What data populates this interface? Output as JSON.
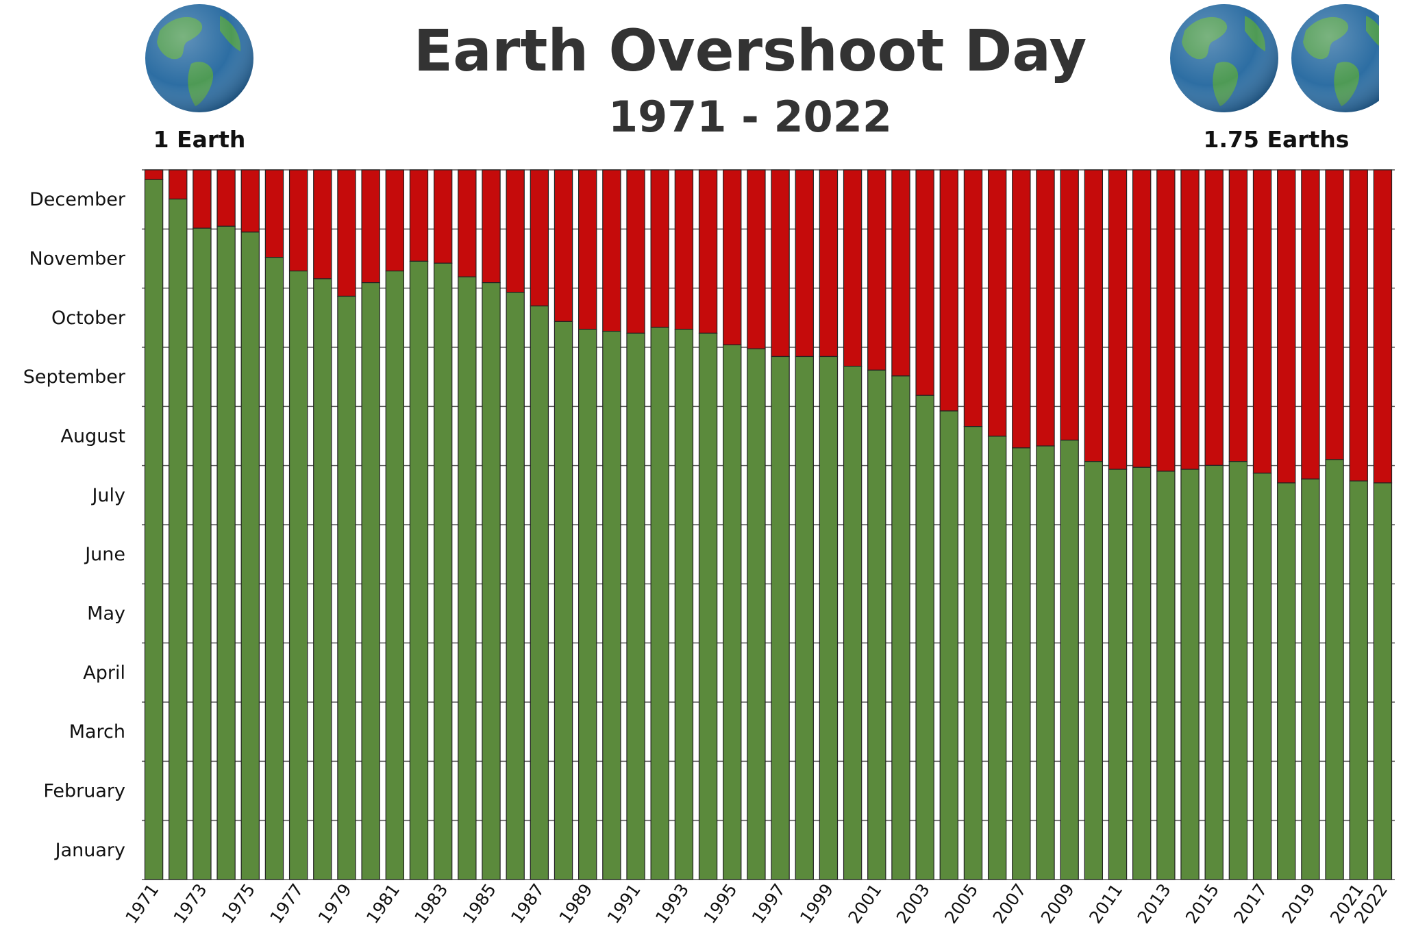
{
  "header": {
    "title": "Earth Overshoot Day",
    "subtitle": "1971 - 2022",
    "left_globe_label": "1 Earth",
    "right_globe_label": "1.75 Earths"
  },
  "colors": {
    "before_overshoot": "#5b8a3c",
    "after_overshoot": "#c50b0b",
    "gridline": "#555555",
    "ocean": "#2d6ea3",
    "land": "#4e9a55"
  },
  "icons": {
    "globe": "earth-globe-icon"
  },
  "chart_data": {
    "type": "bar",
    "stacked": true,
    "title": "Earth Overshoot Day",
    "subtitle": "1971 - 2022",
    "y_tick_labels": [
      "January",
      "February",
      "March",
      "April",
      "May",
      "June",
      "July",
      "August",
      "September",
      "October",
      "November",
      "December"
    ],
    "y_unit": "day of year",
    "ylim": [
      0,
      365
    ],
    "x_tick_labels": [
      "1971",
      "1973",
      "1975",
      "1977",
      "1979",
      "1981",
      "1983",
      "1985",
      "1987",
      "1989",
      "1991",
      "1993",
      "1995",
      "1997",
      "1999",
      "2001",
      "2003",
      "2005",
      "2007",
      "2009",
      "2011",
      "2013",
      "2015",
      "2017",
      "2019",
      "2021",
      "2022"
    ],
    "x": [
      1971,
      1972,
      1973,
      1974,
      1975,
      1976,
      1977,
      1978,
      1979,
      1980,
      1981,
      1982,
      1983,
      1984,
      1985,
      1986,
      1987,
      1988,
      1989,
      1990,
      1991,
      1992,
      1993,
      1994,
      1995,
      1996,
      1997,
      1998,
      1999,
      2000,
      2001,
      2002,
      2003,
      2004,
      2005,
      2006,
      2007,
      2008,
      2009,
      2010,
      2011,
      2012,
      2013,
      2014,
      2015,
      2016,
      2017,
      2018,
      2019,
      2020,
      2021,
      2022
    ],
    "overshoot_day_of_year": [
      360,
      350,
      335,
      336,
      333,
      320,
      313,
      309,
      300,
      307,
      313,
      318,
      317,
      310,
      307,
      302,
      295,
      287,
      283,
      282,
      281,
      284,
      283,
      281,
      275,
      273,
      269,
      269,
      269,
      264,
      262,
      259,
      249,
      241,
      233,
      228,
      222,
      223,
      226,
      215,
      211,
      212,
      210,
      211,
      213,
      215,
      209,
      204,
      206,
      216,
      205,
      204
    ],
    "grid": true,
    "legend": "none"
  }
}
